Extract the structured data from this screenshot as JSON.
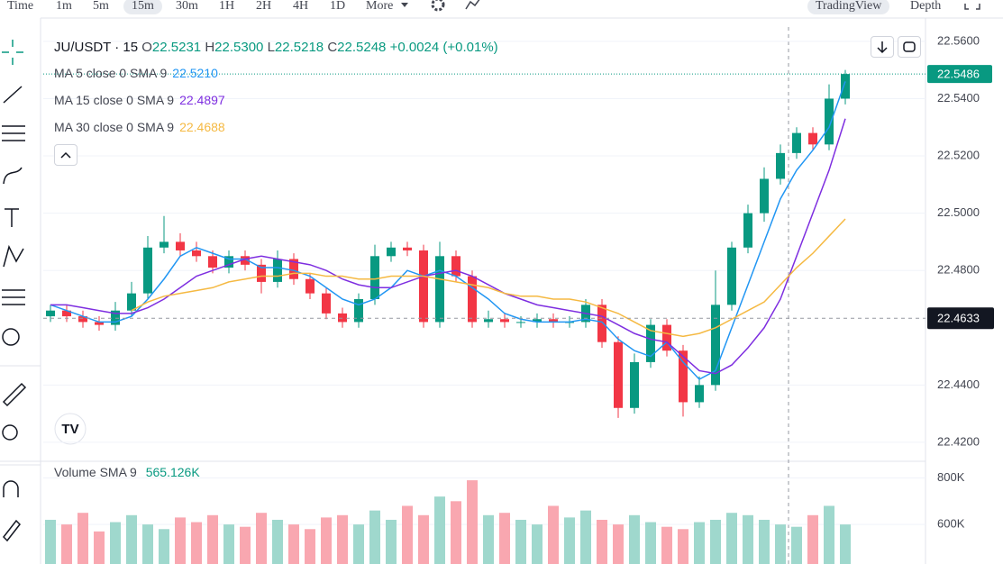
{
  "toolbar": {
    "items": [
      "Time",
      "1m",
      "5m",
      "15m",
      "30m",
      "1H",
      "2H",
      "4H",
      "1D",
      "More"
    ],
    "active": "15m",
    "right": [
      "TradingView",
      "Depth"
    ]
  },
  "chart_data": {
    "type": "candlestick",
    "legend": {
      "symbol": "JU/USDT · 15",
      "o_label": "O",
      "o": "22.5231",
      "h_label": "H",
      "h": "22.5300",
      "l_label": "L",
      "l": "22.5218",
      "c_label": "C",
      "c": "22.5248",
      "change": "+0.0024 (+0.01%)"
    },
    "open": [
      22.464,
      22.466,
      22.464,
      22.462,
      22.461,
      22.466,
      22.472,
      22.488,
      22.49,
      22.487,
      22.485,
      22.481,
      22.485,
      22.482,
      22.476,
      22.484,
      22.477,
      22.472,
      22.465,
      22.462,
      22.47,
      22.485,
      22.488,
      22.487,
      22.462,
      22.485,
      22.478,
      22.462,
      22.463,
      22.462,
      22.462,
      22.463,
      22.462,
      22.462,
      22.468,
      22.455,
      22.432,
      22.448,
      22.461,
      22.452,
      22.434,
      22.44,
      22.468,
      22.488,
      22.5,
      22.512,
      22.521,
      22.528,
      22.524,
      22.54
    ],
    "high": [
      22.468,
      22.468,
      22.466,
      22.464,
      22.469,
      22.476,
      22.492,
      22.499,
      22.493,
      22.49,
      22.487,
      22.487,
      22.487,
      22.484,
      22.487,
      22.486,
      22.479,
      22.474,
      22.467,
      22.472,
      22.489,
      22.49,
      22.49,
      22.489,
      22.49,
      22.487,
      22.48,
      22.466,
      22.465,
      22.464,
      22.465,
      22.465,
      22.464,
      22.47,
      22.47,
      22.457,
      22.451,
      22.463,
      22.463,
      22.454,
      22.443,
      22.48,
      22.49,
      22.503,
      22.516,
      22.524,
      22.53,
      22.53,
      22.545,
      22.55
    ],
    "low": [
      22.462,
      22.462,
      22.46,
      22.459,
      22.459,
      22.464,
      22.47,
      22.486,
      22.485,
      22.483,
      22.479,
      22.479,
      22.48,
      22.472,
      22.474,
      22.475,
      22.47,
      22.463,
      22.46,
      22.46,
      22.468,
      22.483,
      22.485,
      22.46,
      22.46,
      22.476,
      22.46,
      22.46,
      22.46,
      22.46,
      22.46,
      22.46,
      22.46,
      22.46,
      22.453,
      22.4285,
      22.43,
      22.446,
      22.45,
      22.429,
      22.432,
      22.438,
      22.466,
      22.486,
      22.497,
      22.51,
      22.519,
      22.522,
      22.522,
      22.538
    ],
    "close": [
      22.466,
      22.464,
      22.462,
      22.461,
      22.466,
      22.472,
      22.488,
      22.49,
      22.487,
      22.485,
      22.481,
      22.485,
      22.482,
      22.476,
      22.484,
      22.477,
      22.472,
      22.465,
      22.462,
      22.47,
      22.485,
      22.488,
      22.487,
      22.462,
      22.485,
      22.478,
      22.462,
      22.463,
      22.462,
      22.462,
      22.463,
      22.462,
      22.462,
      22.468,
      22.455,
      22.432,
      22.448,
      22.461,
      22.452,
      22.434,
      22.44,
      22.468,
      22.488,
      22.5,
      22.512,
      22.521,
      22.528,
      22.524,
      22.54,
      22.5486
    ],
    "up_color": "#089981",
    "down_color": "#f23645",
    "series": [
      {
        "name": "MA 5 close 0 SMA 9",
        "value_label": "22.5210",
        "color": "#2196f3",
        "values": [
          22.468,
          22.466,
          22.464,
          22.462,
          22.462,
          22.464,
          22.47,
          22.477,
          22.485,
          22.488,
          22.486,
          22.484,
          22.484,
          22.481,
          22.481,
          22.48,
          22.478,
          22.474,
          22.47,
          22.468,
          22.47,
          22.474,
          22.48,
          22.478,
          22.48,
          22.478,
          22.474,
          22.47,
          22.465,
          22.463,
          22.462,
          22.462,
          22.462,
          22.463,
          22.462,
          22.456,
          22.452,
          22.45,
          22.455,
          22.448,
          22.442,
          22.445,
          22.46,
          22.475,
          22.49,
          22.505,
          22.515,
          22.522,
          22.53,
          22.546
        ]
      },
      {
        "name": "MA 15 close 0 SMA 9",
        "value_label": "22.4897",
        "color": "#7e2ee0",
        "values": [
          22.468,
          22.468,
          22.467,
          22.466,
          22.465,
          22.465,
          22.467,
          22.47,
          22.474,
          22.478,
          22.48,
          22.482,
          22.484,
          22.485,
          22.484,
          22.483,
          22.482,
          22.48,
          22.477,
          22.475,
          22.474,
          22.474,
          22.476,
          22.478,
          22.479,
          22.48,
          22.478,
          22.475,
          22.472,
          22.47,
          22.468,
          22.467,
          22.466,
          22.465,
          22.464,
          22.461,
          22.458,
          22.456,
          22.455,
          22.45,
          22.445,
          22.444,
          22.447,
          22.453,
          22.46,
          22.47,
          22.485,
          22.5,
          22.515,
          22.533
        ]
      },
      {
        "name": "MA 30 close 0 SMA 9",
        "value_label": "22.4688",
        "color": "#f5b942",
        "values": [
          null,
          null,
          null,
          null,
          null,
          22.466,
          22.469,
          22.471,
          22.472,
          22.473,
          22.474,
          22.476,
          22.477,
          22.478,
          22.478,
          22.479,
          22.479,
          22.478,
          22.478,
          22.477,
          22.477,
          22.478,
          22.478,
          22.478,
          22.477,
          22.476,
          22.475,
          22.474,
          22.472,
          22.471,
          22.471,
          22.47,
          22.47,
          22.469,
          22.467,
          22.465,
          22.462,
          22.459,
          22.458,
          22.457,
          22.458,
          22.46,
          22.463,
          22.466,
          22.469,
          22.475,
          22.481,
          22.486,
          22.492,
          22.498
        ]
      }
    ],
    "ylim": [
      22.414,
      22.565
    ],
    "yticks": [
      {
        "value": 22.42,
        "label": "22.4200"
      },
      {
        "value": 22.44,
        "label": "22.4400"
      },
      {
        "value": 22.48,
        "label": "22.4800"
      },
      {
        "value": 22.5,
        "label": "22.5000"
      },
      {
        "value": 22.52,
        "label": "22.5200"
      },
      {
        "value": 22.54,
        "label": "22.5400"
      },
      {
        "value": 22.56,
        "label": "22.5600"
      }
    ],
    "grid": true,
    "last_price": 22.5486,
    "crosshair_price": 22.4633,
    "volume": {
      "title": "Volume SMA 9",
      "value_label": "565.126K",
      "values": [
        620000,
        600000,
        650000,
        570000,
        610000,
        640000,
        600000,
        580000,
        630000,
        610000,
        640000,
        600000,
        590000,
        650000,
        620000,
        600000,
        580000,
        630000,
        640000,
        600000,
        660000,
        620000,
        680000,
        640000,
        720000,
        700000,
        790000,
        640000,
        650000,
        620000,
        600000,
        680000,
        630000,
        660000,
        620000,
        600000,
        640000,
        610000,
        590000,
        580000,
        610000,
        620000,
        650000,
        640000,
        620000,
        600000,
        590000,
        640000,
        680000,
        600000
      ],
      "ylim": [
        430000,
        860000
      ],
      "yticks": [
        {
          "value": 600000,
          "label": "600K"
        },
        {
          "value": 800000,
          "label": "800K"
        }
      ],
      "up_color": "#9fd8cd",
      "down_color": "#f9a7b0"
    }
  }
}
